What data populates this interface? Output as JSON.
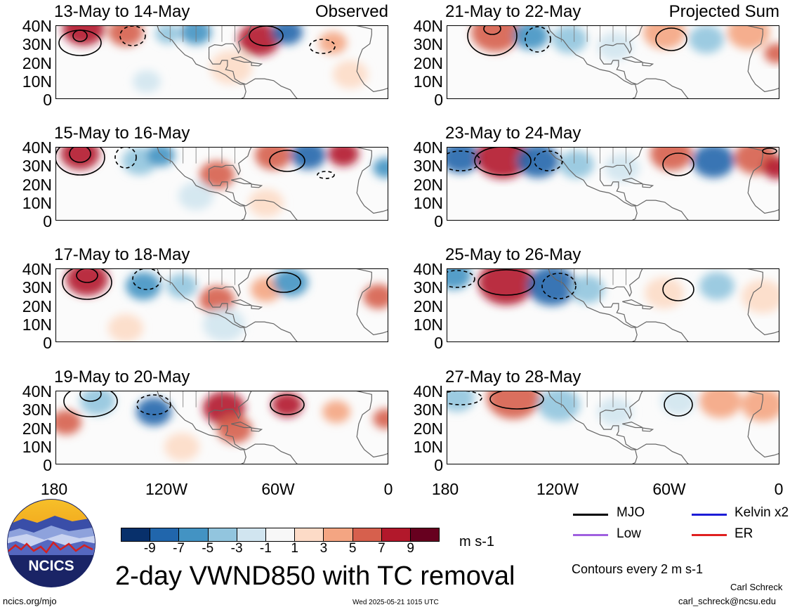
{
  "panels": {
    "left": [
      {
        "period": "13-May to 14-May",
        "tag": "Observed"
      },
      {
        "period": "15-May to 16-May",
        "tag": ""
      },
      {
        "period": "17-May to 18-May",
        "tag": ""
      },
      {
        "period": "19-May to 20-May",
        "tag": ""
      }
    ],
    "right": [
      {
        "period": "21-May to 22-May",
        "tag": "Projected Sum"
      },
      {
        "period": "23-May to 24-May",
        "tag": ""
      },
      {
        "period": "25-May to 26-May",
        "tag": ""
      },
      {
        "period": "27-May to 28-May",
        "tag": ""
      }
    ]
  },
  "axes": {
    "lat_labels": [
      "40N",
      "30N",
      "20N",
      "10N",
      "0"
    ],
    "lon_labels": [
      "180",
      "120W",
      "60W",
      "0"
    ],
    "lon_range": [
      -180,
      0
    ],
    "lat_range": [
      0,
      40
    ]
  },
  "colorbar": {
    "ticks": [
      "-9",
      "-7",
      "-5",
      "-3",
      "-1",
      "1",
      "3",
      "5",
      "7",
      "9"
    ],
    "colors": [
      "#08306b",
      "#2166ac",
      "#4393c3",
      "#92c5de",
      "#d1e5f0",
      "#f7f7f7",
      "#fddbc7",
      "#f4a582",
      "#d6604d",
      "#b2182b",
      "#67001f"
    ],
    "unit": "m s-1"
  },
  "title": "2-day VWND850 with TC removal",
  "legend": {
    "items": [
      {
        "label": "MJO",
        "color": "#000000"
      },
      {
        "label": "Kelvin x2",
        "color": "#1c1cd6"
      },
      {
        "label": "Low",
        "color": "#a060e0"
      },
      {
        "label": "ER",
        "color": "#e02020"
      }
    ],
    "contour_note": "Contours every 2 m s-1"
  },
  "footer": {
    "site": "ncics.org/mjo",
    "timestamp": "Wed 2025-05-21 1015 UTC",
    "author": "Carl Schreck",
    "email": "carl_schreck@ncsu.edu"
  },
  "logo": {
    "text": "NCICS"
  }
}
